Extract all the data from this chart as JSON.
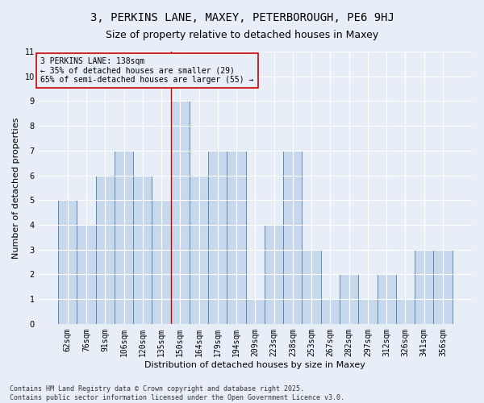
{
  "title": "3, PERKINS LANE, MAXEY, PETERBOROUGH, PE6 9HJ",
  "subtitle": "Size of property relative to detached houses in Maxey",
  "xlabel": "Distribution of detached houses by size in Maxey",
  "ylabel": "Number of detached properties",
  "categories": [
    "62sqm",
    "76sqm",
    "91sqm",
    "106sqm",
    "120sqm",
    "135sqm",
    "150sqm",
    "164sqm",
    "179sqm",
    "194sqm",
    "209sqm",
    "223sqm",
    "238sqm",
    "253sqm",
    "267sqm",
    "282sqm",
    "297sqm",
    "312sqm",
    "326sqm",
    "341sqm",
    "356sqm"
  ],
  "values": [
    5,
    4,
    6,
    7,
    6,
    5,
    9,
    6,
    7,
    7,
    1,
    4,
    7,
    3,
    1,
    2,
    1,
    2,
    1,
    3,
    3
  ],
  "bar_color": "#c8d8ec",
  "bar_edge_color": "#5a88b5",
  "background_color": "#e8eef8",
  "grid_color": "#ffffff",
  "annotation_box_text": "3 PERKINS LANE: 138sqm\n← 35% of detached houses are smaller (29)\n65% of semi-detached houses are larger (55) →",
  "annotation_box_color": "#cc0000",
  "vline_x_index": 5,
  "vline_color": "#cc0000",
  "ylim": [
    0,
    11
  ],
  "yticks": [
    0,
    1,
    2,
    3,
    4,
    5,
    6,
    7,
    8,
    9,
    10,
    11
  ],
  "footer": "Contains HM Land Registry data © Crown copyright and database right 2025.\nContains public sector information licensed under the Open Government Licence v3.0.",
  "title_fontsize": 10,
  "subtitle_fontsize": 9,
  "ylabel_fontsize": 8,
  "xlabel_fontsize": 8,
  "tick_fontsize": 7,
  "annotation_fontsize": 7,
  "footer_fontsize": 6
}
